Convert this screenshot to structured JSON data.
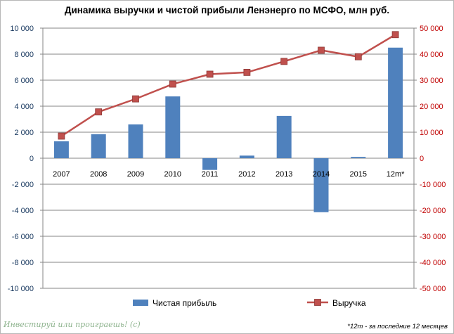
{
  "chart_data": {
    "type": "bar+line",
    "title": "Динамика выручки и чистой прибыли Ленэнерго по МСФО, млн руб.",
    "categories": [
      "2007",
      "2008",
      "2009",
      "2010",
      "2011",
      "2012",
      "2013",
      "2014",
      "2015",
      "12m*"
    ],
    "series": [
      {
        "name": "Чистая прибыль",
        "type": "bar",
        "axis": "left",
        "color": "#4f81bd",
        "values": [
          1300,
          1850,
          2600,
          4750,
          -900,
          200,
          3250,
          -4150,
          100,
          8500
        ]
      },
      {
        "name": "Выручка",
        "type": "line",
        "axis": "right",
        "color": "#c0504d",
        "values": [
          8500,
          17800,
          22800,
          28500,
          32300,
          33000,
          37200,
          41500,
          39000,
          47500
        ]
      }
    ],
    "y_left": {
      "min": -10000,
      "max": 10000,
      "step": 2000,
      "tick_labels": [
        "-10 000",
        "-8 000",
        "-6 000",
        "-4 000",
        "-2 000",
        "0",
        "2 000",
        "4 000",
        "6 000",
        "8 000",
        "10 000"
      ]
    },
    "y_right": {
      "min": -50000,
      "max": 50000,
      "step": 10000,
      "tick_labels": [
        "-50 000",
        "-40 000",
        "-30 000",
        "-20 000",
        "-10 000",
        "0",
        "10 000",
        "20 000",
        "30 000",
        "40 000",
        "50 000"
      ]
    },
    "grid": true,
    "legend_position": "bottom"
  },
  "watermark": "Инвестируй или проиграешь! (с)",
  "footnote": "*12m - за последние 12 месяцев"
}
